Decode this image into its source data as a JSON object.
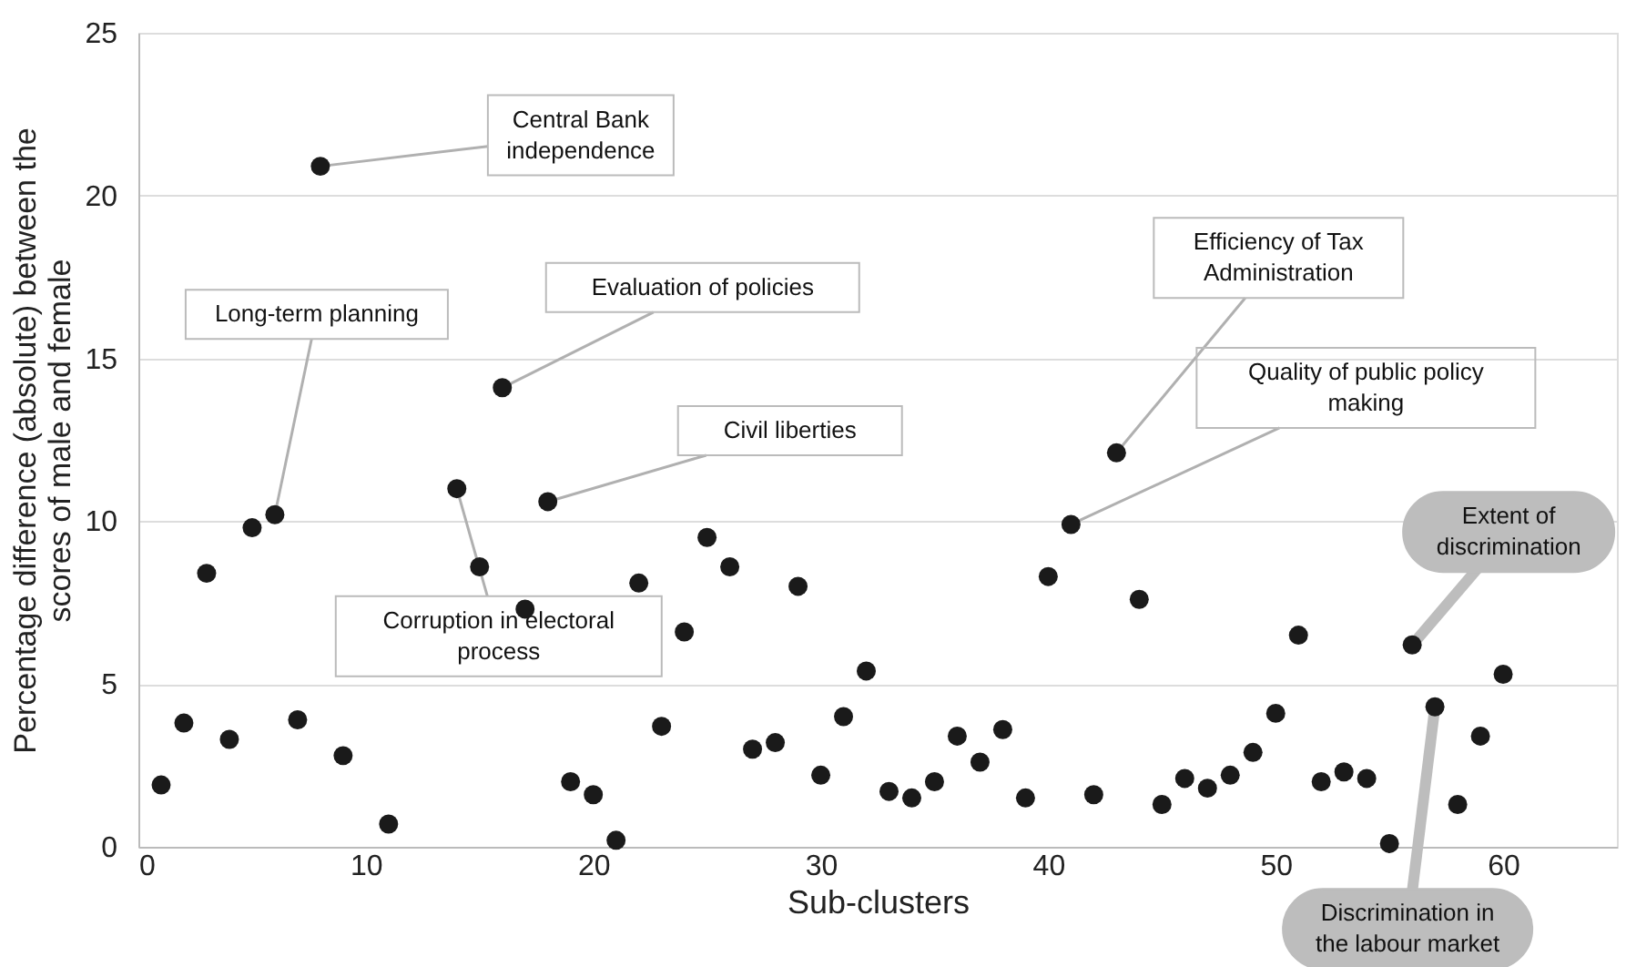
{
  "chart_data": {
    "type": "scatter",
    "xlabel": "Sub-clusters",
    "ylabel": "Percentage difference (absolute) between the scores of male and female",
    "x": [
      1,
      2,
      3,
      4,
      5,
      6,
      7,
      8,
      9,
      11,
      14,
      15,
      16,
      17,
      18,
      19,
      20,
      21,
      22,
      23,
      24,
      25,
      26,
      27,
      28,
      29,
      30,
      31,
      32,
      33,
      34,
      35,
      36,
      37,
      38,
      39,
      40,
      41,
      42,
      43,
      44,
      45,
      46,
      47,
      48,
      49,
      50,
      51,
      52,
      53,
      54,
      55,
      56,
      57,
      58,
      59,
      60
    ],
    "values": [
      1.9,
      3.8,
      8.4,
      3.3,
      9.8,
      10.2,
      3.9,
      20.9,
      2.8,
      0.7,
      11.0,
      8.6,
      14.1,
      7.3,
      10.6,
      2.0,
      1.6,
      0.2,
      8.1,
      3.7,
      6.6,
      9.5,
      8.6,
      3.0,
      3.2,
      8.0,
      2.2,
      4.0,
      5.4,
      1.7,
      1.5,
      2.0,
      3.4,
      2.6,
      3.6,
      1.5,
      8.3,
      9.9,
      1.6,
      12.1,
      7.6,
      1.3,
      2.1,
      1.8,
      2.2,
      2.9,
      4.1,
      6.5,
      2.0,
      2.3,
      2.1,
      0.1,
      6.2,
      4.3,
      1.3,
      3.4,
      5.3
    ],
    "color": "#1a1a1a",
    "marker": "circle",
    "xlim": [
      0,
      65
    ],
    "xticks": [
      0,
      10,
      20,
      30,
      40,
      50,
      60
    ],
    "ylim": [
      0,
      25
    ],
    "yticks": [
      0,
      5,
      10,
      15,
      20,
      25
    ],
    "grid": "y",
    "annotations": [
      {
        "text": "Central Bank independence",
        "x": 8,
        "y": 20.9
      },
      {
        "text": "Long-term planning",
        "x": 6,
        "y": 10.2
      },
      {
        "text": "Evaluation of policies",
        "x": 16,
        "y": 14.1
      },
      {
        "text": "Civil liberties",
        "x": 18,
        "y": 10.6
      },
      {
        "text": "Corruption in electoral process",
        "x": 14,
        "y": 11.0
      },
      {
        "text": "Efficiency of Tax Administration",
        "x": 43,
        "y": 12.1
      },
      {
        "text": "Quality of public policy making",
        "x": 41,
        "y": 9.9
      },
      {
        "text": "Extent of discrimination",
        "x": 56,
        "y": 6.2
      },
      {
        "text": "Discrimination in the labour market",
        "x": 57,
        "y": 4.3
      }
    ]
  }
}
